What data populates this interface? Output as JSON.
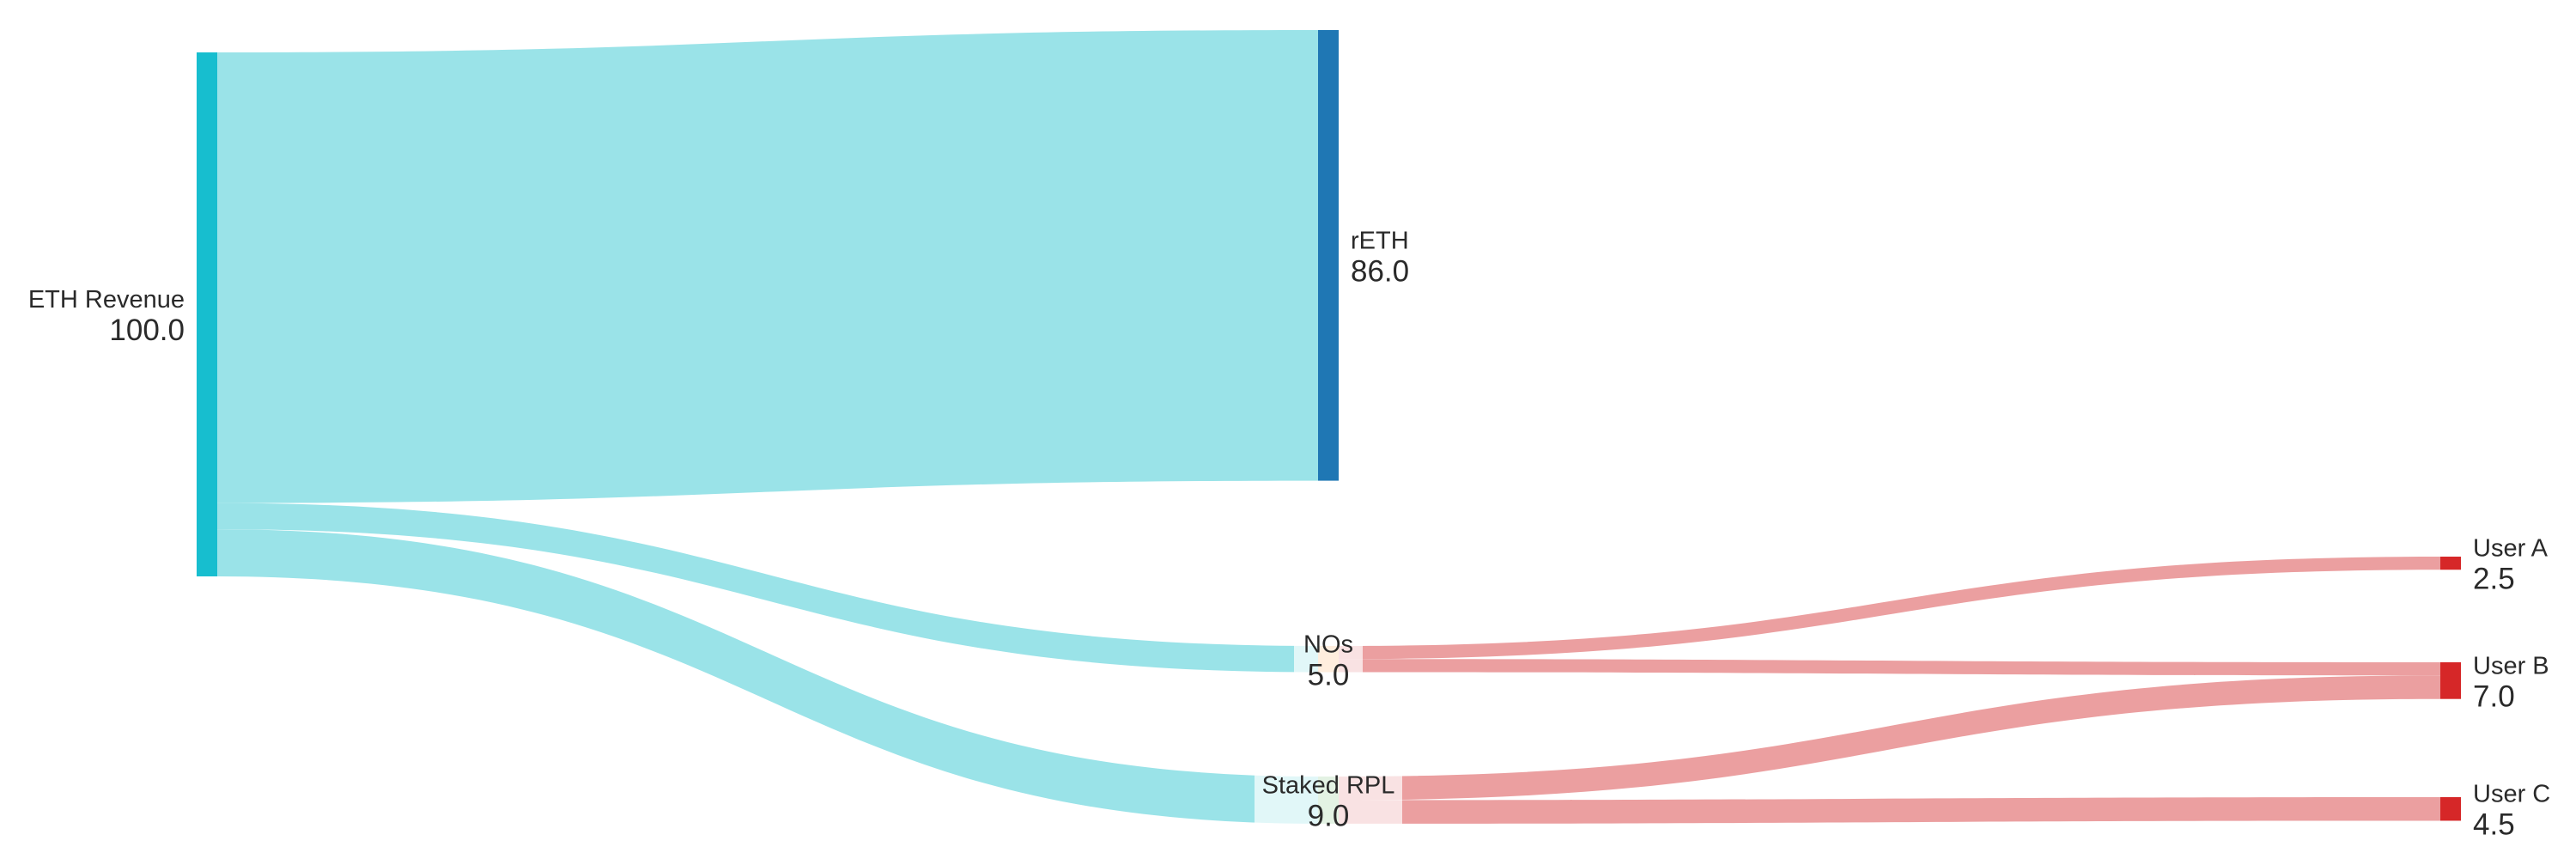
{
  "chart_data": {
    "type": "sankey",
    "nodes": [
      {
        "id": "eth_revenue",
        "label": "ETH Revenue",
        "value": "100.0",
        "color": "#17becf"
      },
      {
        "id": "reth",
        "label": "rETH",
        "value": "86.0",
        "color": "#1f77b4"
      },
      {
        "id": "nos",
        "label": "NOs",
        "value": "5.0",
        "color": "#ff7f0e"
      },
      {
        "id": "staked_rpl",
        "label": "Staked RPL",
        "value": "9.0",
        "color": "#2ca02c"
      },
      {
        "id": "user_a",
        "label": "User A",
        "value": "2.5",
        "color": "#d62728"
      },
      {
        "id": "user_b",
        "label": "User B",
        "value": "7.0",
        "color": "#d62728"
      },
      {
        "id": "user_c",
        "label": "User C",
        "value": "4.5",
        "color": "#d62728"
      }
    ],
    "links": [
      {
        "source": "eth_revenue",
        "target": "reth",
        "value": 86.0,
        "color": "#9ae3e8"
      },
      {
        "source": "eth_revenue",
        "target": "nos",
        "value": 5.0,
        "color": "#9ae3e8"
      },
      {
        "source": "eth_revenue",
        "target": "staked_rpl",
        "value": 9.0,
        "color": "#9ae3e8"
      },
      {
        "source": "nos",
        "target": "user_a",
        "value": 2.5,
        "color": "#eb9fa0"
      },
      {
        "source": "nos",
        "target": "user_b",
        "value": 2.5,
        "color": "#eb9fa0"
      },
      {
        "source": "staked_rpl",
        "target": "user_b",
        "value": 4.5,
        "color": "#eb9fa0"
      },
      {
        "source": "staked_rpl",
        "target": "user_c",
        "value": 4.5,
        "color": "#eb9fa0"
      }
    ]
  }
}
